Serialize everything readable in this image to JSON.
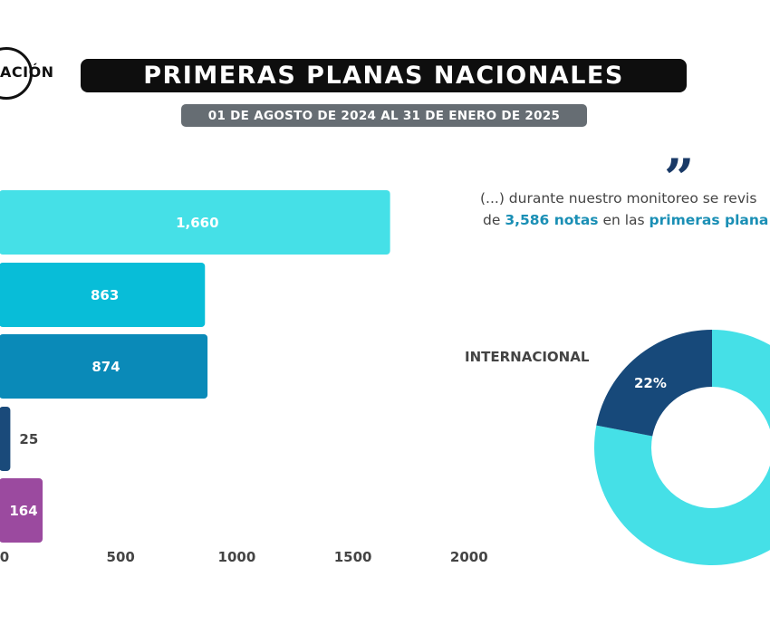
{
  "header": {
    "logo_text": "ACIÓN",
    "title": "PRIMERAS PLANAS NACIONALES",
    "subtitle": "01 DE AGOSTO DE 2024 AL 31 DE ENERO DE 2025"
  },
  "quote": {
    "line1": "(...) durante nuestro monitoreo se revis",
    "line2_prefix": "de ",
    "line2_highlight1": "3,586 notas",
    "line2_middle": " en las ",
    "line2_highlight2": "primeras plana"
  },
  "colors": {
    "cyan": "#45e0e7",
    "teal": "#08bdd8",
    "blue": "#0a8ab8",
    "navy": "#1a4a7a",
    "purple": "#9b4a9f"
  },
  "chart_data": [
    {
      "type": "bar",
      "orientation": "horizontal",
      "values": [
        1660,
        863,
        874,
        25,
        164
      ],
      "value_labels": [
        "1,660",
        "863",
        "874",
        "25",
        "164"
      ],
      "colors": [
        "#45e0e7",
        "#08bdd8",
        "#0a8ab8",
        "#1a4a7a",
        "#9b4a9f"
      ],
      "xlim": [
        0,
        2000
      ],
      "xticks": [
        0,
        500,
        1000,
        1500,
        2000
      ],
      "xtick_labels": [
        "0",
        "500",
        "1000",
        "1500",
        "2000"
      ]
    },
    {
      "type": "pie",
      "donut": true,
      "slices": [
        {
          "label": "INTERNACIONAL",
          "percent": 22,
          "percent_label": "22%",
          "color": "#17497a"
        },
        {
          "label": "",
          "percent": 78,
          "color": "#45e0e7"
        }
      ]
    }
  ]
}
